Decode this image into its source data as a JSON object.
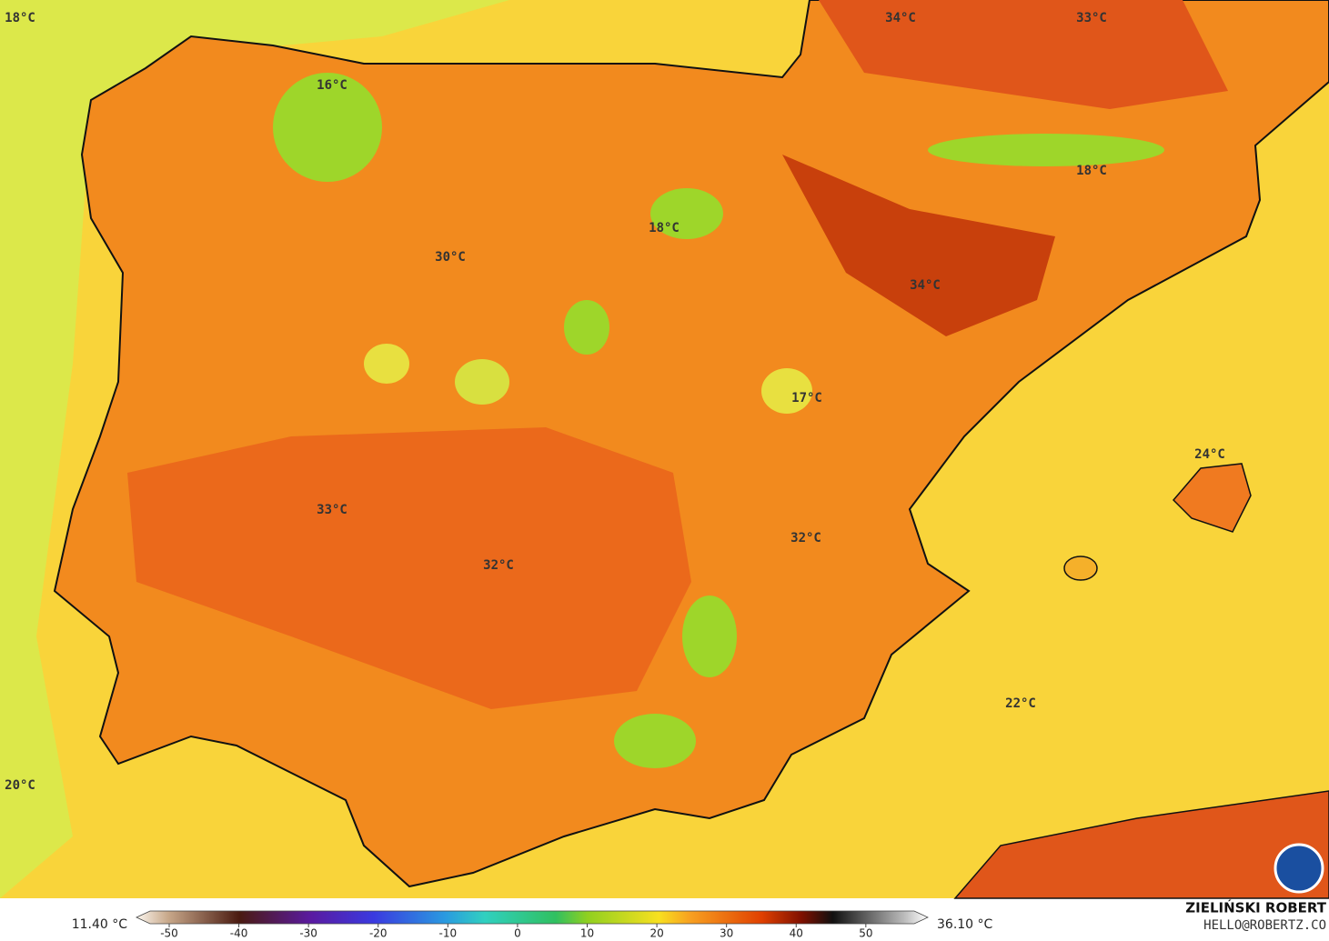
{
  "map": {
    "labels": [
      "18°C",
      "16°C",
      "34°C",
      "33°C",
      "18°C",
      "18°C",
      "30°C",
      "34°C",
      "17°C",
      "24°C",
      "33°C",
      "32°C",
      "32°C",
      "22°C",
      "20°C"
    ]
  },
  "colorbar": {
    "min_label": "11.40 °C",
    "max_label": "36.10 °C",
    "lim": [
      -54.7,
      58.9
    ],
    "ticks": [
      -50,
      -40,
      -30,
      -20,
      -10,
      0,
      10,
      20,
      30,
      40,
      50
    ]
  },
  "credit": {
    "name": "ZIELIŃSKI ROBERT",
    "email": "HELLO@ROBERTZ.CO"
  }
}
